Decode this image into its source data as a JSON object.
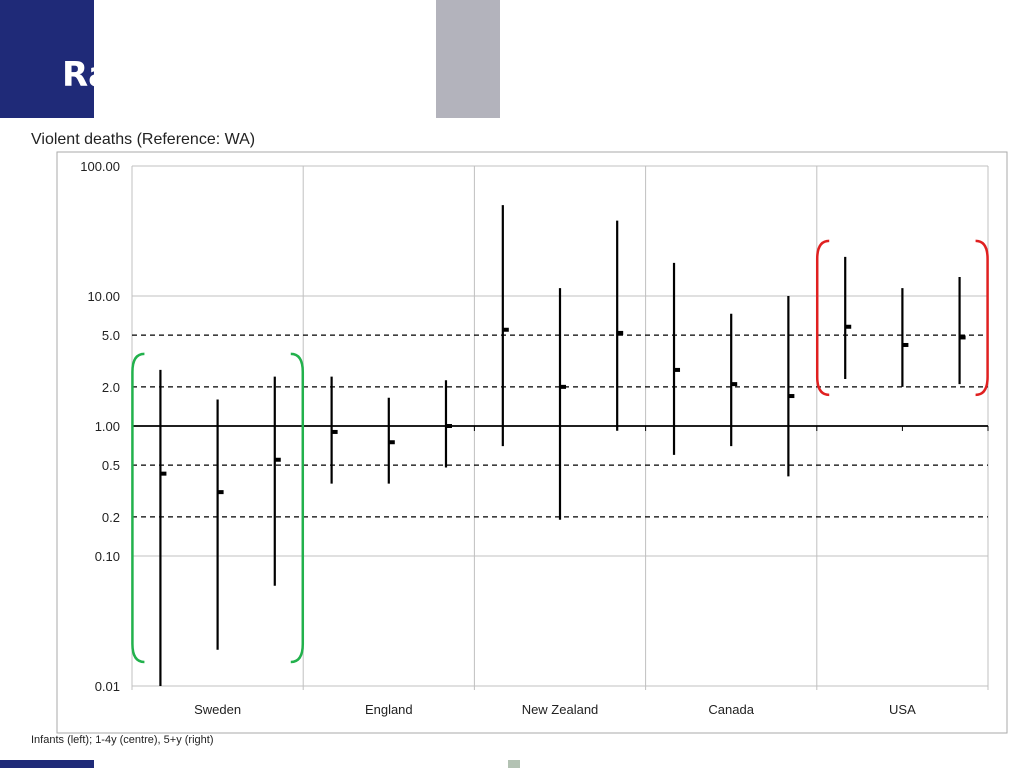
{
  "slide": {
    "title_text": "Ra"
  },
  "chart_data": {
    "type": "error-bar",
    "title": "Violent deaths (Reference: WA)",
    "note": "Infants (left); 1-4y (centre), 5+y (right)",
    "y_scale": "log",
    "ylim": [
      0.01,
      100
    ],
    "y_ticks": [
      {
        "value": 100,
        "label": "100.00"
      },
      {
        "value": 10,
        "label": "10.00"
      },
      {
        "value": 5,
        "label": "5.0"
      },
      {
        "value": 2,
        "label": "2.0"
      },
      {
        "value": 1,
        "label": "1.00"
      },
      {
        "value": 0.5,
        "label": "0.5"
      },
      {
        "value": 0.2,
        "label": "0.2"
      },
      {
        "value": 0.1,
        "label": "0.10"
      },
      {
        "value": 0.01,
        "label": "0.01"
      }
    ],
    "dashed_reference_lines": [
      5,
      2,
      0.5,
      0.2
    ],
    "solid_reference_line": 1,
    "categories": [
      "Sweden",
      "England",
      "New Zealand",
      "Canada",
      "USA"
    ],
    "groups": [
      {
        "country": "Sweden",
        "points": [
          {
            "estimate": 0.43,
            "low": 0.01,
            "high": 2.7
          },
          {
            "estimate": 0.31,
            "low": 0.019,
            "high": 1.6
          },
          {
            "estimate": 0.55,
            "low": 0.059,
            "high": 2.4
          }
        ]
      },
      {
        "country": "England",
        "points": [
          {
            "estimate": 0.9,
            "low": 0.36,
            "high": 2.4
          },
          {
            "estimate": 0.75,
            "low": 0.36,
            "high": 1.65
          },
          {
            "estimate": 1.0,
            "low": 0.48,
            "high": 2.25
          }
        ]
      },
      {
        "country": "New Zealand",
        "points": [
          {
            "estimate": 5.5,
            "low": 0.7,
            "high": 50
          },
          {
            "estimate": 2.0,
            "low": 0.19,
            "high": 11.5
          },
          {
            "estimate": 5.2,
            "low": 0.92,
            "high": 38
          }
        ]
      },
      {
        "country": "Canada",
        "points": [
          {
            "estimate": 2.7,
            "low": 0.6,
            "high": 18
          },
          {
            "estimate": 2.1,
            "low": 0.7,
            "high": 7.3
          },
          {
            "estimate": 1.7,
            "low": 0.41,
            "high": 10
          }
        ]
      },
      {
        "country": "USA",
        "points": [
          {
            "estimate": 5.8,
            "low": 2.3,
            "high": 20
          },
          {
            "estimate": 4.2,
            "low": 2.0,
            "high": 11.5
          },
          {
            "estimate": 4.8,
            "low": 2.1,
            "high": 14
          }
        ]
      }
    ],
    "highlights": [
      {
        "country": "Sweden",
        "color": "#22b14c"
      },
      {
        "country": "USA",
        "color": "#e02020"
      }
    ],
    "colors": {
      "bars": "#000000",
      "grid": "#c0c0c0",
      "frame": "#aaaaaa",
      "header_blue": "#1f2a78",
      "header_grey": "#b3b3bc"
    }
  }
}
